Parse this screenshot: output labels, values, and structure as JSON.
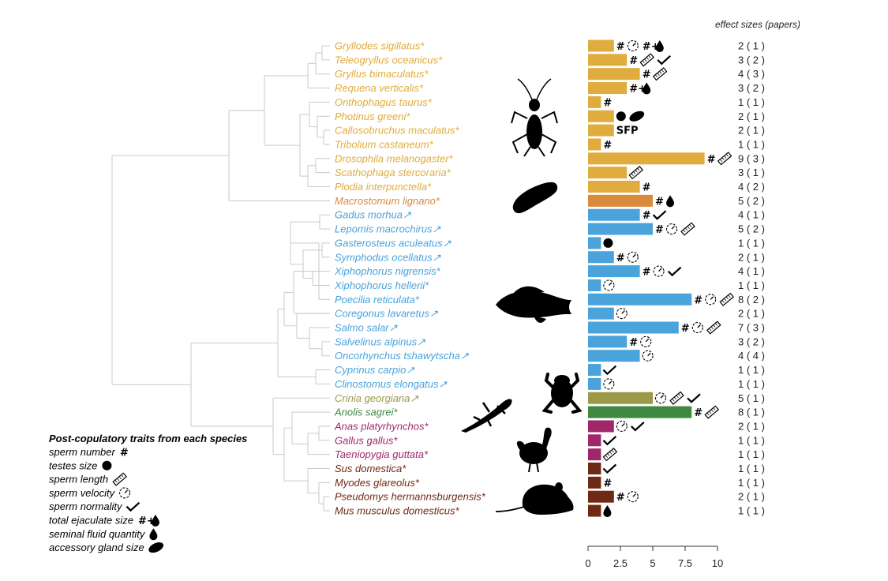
{
  "chart_data": {
    "type": "bar",
    "orientation": "horizontal",
    "effect_header": "effect sizes (papers)",
    "xlim": [
      0,
      10
    ],
    "xticks": [
      "0",
      "2.5",
      "5",
      "7.5",
      "10"
    ],
    "group_colors": {
      "insect": "#e0ac3d",
      "flatworm": "#d98a3a",
      "fish": "#4aa3db",
      "frog": "#9b9a48",
      "lizard": "#3f8a40",
      "bird": "#a0286a",
      "mammal": "#6e2a14"
    },
    "species": [
      {
        "name": "Gryllodes sigillatus",
        "mark": "*",
        "group": "insect",
        "effect_sizes": 2,
        "papers": 1,
        "traits": [
          "number",
          "velocity",
          "ejaculate"
        ]
      },
      {
        "name": "Teleogryllus oceanicus",
        "mark": "*",
        "group": "insect",
        "effect_sizes": 3,
        "papers": 2,
        "traits": [
          "number",
          "length",
          "normality"
        ]
      },
      {
        "name": "Gryllus bimaculatus",
        "mark": "*",
        "group": "insect",
        "effect_sizes": 4,
        "papers": 3,
        "traits": [
          "number",
          "length"
        ]
      },
      {
        "name": "Requena verticalis",
        "mark": "*",
        "group": "insect",
        "effect_sizes": 3,
        "papers": 2,
        "traits": [
          "ejaculate"
        ]
      },
      {
        "name": "Onthophagus taurus",
        "mark": "*",
        "group": "insect",
        "effect_sizes": 1,
        "papers": 1,
        "traits": [
          "number"
        ]
      },
      {
        "name": "Photinus greeni",
        "mark": "*",
        "group": "insect",
        "effect_sizes": 2,
        "papers": 1,
        "traits": [
          "testes",
          "gland"
        ]
      },
      {
        "name": "Callosobruchus maculatus",
        "mark": "*",
        "group": "insect",
        "effect_sizes": 2,
        "papers": 1,
        "traits": [
          "SFP"
        ]
      },
      {
        "name": "Tribolium castaneum",
        "mark": "*",
        "group": "insect",
        "effect_sizes": 1,
        "papers": 1,
        "traits": [
          "number"
        ]
      },
      {
        "name": "Drosophila melanogaster",
        "mark": "*",
        "group": "insect",
        "effect_sizes": 9,
        "papers": 3,
        "traits": [
          "number",
          "length"
        ]
      },
      {
        "name": "Scathophaga stercoraria",
        "mark": "*",
        "group": "insect",
        "effect_sizes": 3,
        "papers": 1,
        "traits": [
          "length"
        ]
      },
      {
        "name": "Plodia interpunctella",
        "mark": "*",
        "group": "insect",
        "effect_sizes": 4,
        "papers": 2,
        "traits": [
          "number"
        ]
      },
      {
        "name": "Macrostomum lignano",
        "mark": "*",
        "group": "flatworm",
        "effect_sizes": 5,
        "papers": 2,
        "traits": [
          "number",
          "fluid"
        ]
      },
      {
        "name": "Gadus morhua",
        "mark": "↗",
        "group": "fish",
        "effect_sizes": 4,
        "papers": 1,
        "traits": [
          "number",
          "normality"
        ]
      },
      {
        "name": "Lepomis macrochirus",
        "mark": "↗",
        "group": "fish",
        "effect_sizes": 5,
        "papers": 2,
        "traits": [
          "number",
          "velocity",
          "length"
        ]
      },
      {
        "name": "Gasterosteus aculeatus",
        "mark": "↗",
        "group": "fish",
        "effect_sizes": 1,
        "papers": 1,
        "traits": [
          "testes"
        ]
      },
      {
        "name": "Symphodus ocellatus",
        "mark": "↗",
        "group": "fish",
        "effect_sizes": 2,
        "papers": 1,
        "traits": [
          "number",
          "velocity"
        ]
      },
      {
        "name": "Xiphophorus nigrensis",
        "mark": "*",
        "group": "fish",
        "effect_sizes": 4,
        "papers": 1,
        "traits": [
          "number",
          "velocity",
          "normality"
        ]
      },
      {
        "name": "Xiphophorus hellerii",
        "mark": "*",
        "group": "fish",
        "effect_sizes": 1,
        "papers": 1,
        "traits": [
          "velocity"
        ]
      },
      {
        "name": "Poecilia reticulata",
        "mark": "*",
        "group": "fish",
        "effect_sizes": 8,
        "papers": 2,
        "traits": [
          "number",
          "velocity",
          "length"
        ]
      },
      {
        "name": "Coregonus lavaretus",
        "mark": "↗",
        "group": "fish",
        "effect_sizes": 2,
        "papers": 1,
        "traits": [
          "velocity"
        ]
      },
      {
        "name": "Salmo salar",
        "mark": "↗",
        "group": "fish",
        "effect_sizes": 7,
        "papers": 3,
        "traits": [
          "number",
          "velocity",
          "length"
        ]
      },
      {
        "name": "Salvelinus alpinus",
        "mark": "↗",
        "group": "fish",
        "effect_sizes": 3,
        "papers": 2,
        "traits": [
          "number",
          "velocity"
        ]
      },
      {
        "name": "Oncorhynchus tshawytscha",
        "mark": "↗",
        "group": "fish",
        "effect_sizes": 4,
        "papers": 4,
        "traits": [
          "velocity"
        ]
      },
      {
        "name": "Cyprinus carpio",
        "mark": "↗",
        "group": "fish",
        "effect_sizes": 1,
        "papers": 1,
        "traits": [
          "normality"
        ]
      },
      {
        "name": "Clinostomus elongatus",
        "mark": "↗",
        "group": "fish",
        "effect_sizes": 1,
        "papers": 1,
        "traits": [
          "velocity"
        ]
      },
      {
        "name": "Crinia georgiana",
        "mark": "↗",
        "group": "frog",
        "effect_sizes": 5,
        "papers": 1,
        "traits": [
          "velocity",
          "length",
          "normality"
        ]
      },
      {
        "name": "Anolis sagrei",
        "mark": "*",
        "group": "lizard",
        "effect_sizes": 8,
        "papers": 1,
        "traits": [
          "number",
          "length"
        ]
      },
      {
        "name": "Anas platyrhynchos",
        "mark": "*",
        "group": "bird",
        "effect_sizes": 2,
        "papers": 1,
        "traits": [
          "velocity",
          "normality"
        ]
      },
      {
        "name": "Gallus gallus",
        "mark": "*",
        "group": "bird",
        "effect_sizes": 1,
        "papers": 1,
        "traits": [
          "normality"
        ]
      },
      {
        "name": "Taeniopygia guttata",
        "mark": "*",
        "group": "bird",
        "effect_sizes": 1,
        "papers": 1,
        "traits": [
          "length"
        ]
      },
      {
        "name": "Sus domestica",
        "mark": "*",
        "group": "mammal",
        "effect_sizes": 1,
        "papers": 1,
        "traits": [
          "normality"
        ]
      },
      {
        "name": "Myodes glareolus",
        "mark": "*",
        "group": "mammal",
        "effect_sizes": 1,
        "papers": 1,
        "traits": [
          "number"
        ]
      },
      {
        "name": "Pseudomys hermannsburgensis",
        "mark": "*",
        "group": "mammal",
        "effect_sizes": 2,
        "papers": 1,
        "traits": [
          "number",
          "velocity"
        ]
      },
      {
        "name": "Mus musculus domesticus",
        "mark": "*",
        "group": "mammal",
        "effect_sizes": 1,
        "papers": 1,
        "traits": [
          "fluid"
        ]
      }
    ],
    "legend": {
      "title": "Post-copulatory traits from each species",
      "items": [
        {
          "key": "number",
          "label": "sperm number"
        },
        {
          "key": "testes",
          "label": "testes size"
        },
        {
          "key": "length",
          "label": "sperm length"
        },
        {
          "key": "velocity",
          "label": "sperm velocity"
        },
        {
          "key": "normality",
          "label": "sperm normality"
        },
        {
          "key": "ejaculate",
          "label": "total ejaculate size"
        },
        {
          "key": "fluid",
          "label": "seminal fluid quantity"
        },
        {
          "key": "gland",
          "label": "accessory gland size"
        }
      ]
    }
  }
}
